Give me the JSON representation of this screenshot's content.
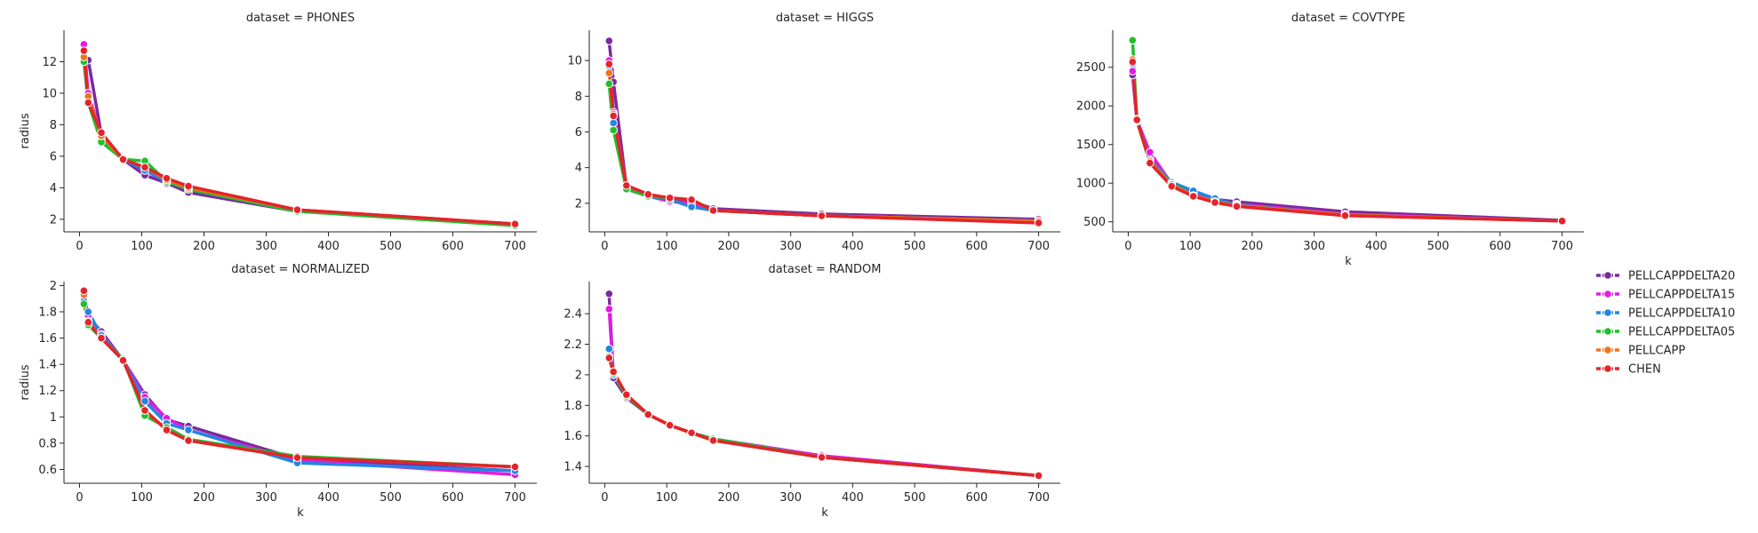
{
  "legend": {
    "placement": "right",
    "entries": [
      {
        "name": "PELLCAPPDELTA20",
        "color": "#7b2a9e"
      },
      {
        "name": "PELLCAPPDELTA15",
        "color": "#e21be2"
      },
      {
        "name": "PELLCAPPDELTA10",
        "color": "#2185e4"
      },
      {
        "name": "PELLCAPPDELTA05",
        "color": "#1fbf2c"
      },
      {
        "name": "PELLCAPP",
        "color": "#f07318"
      },
      {
        "name": "CHEN",
        "color": "#e3242b"
      }
    ]
  },
  "chart_data": [
    {
      "type": "line",
      "title": "dataset = PHONES",
      "xlabel": "",
      "ylabel": "radius",
      "xlim": [
        -25,
        735
      ],
      "ylim": [
        1.2,
        14.0
      ],
      "xticks": [
        0,
        100,
        200,
        300,
        400,
        500,
        600,
        700
      ],
      "yticks": [
        2,
        4,
        6,
        8,
        10,
        12
      ],
      "x": [
        7,
        14,
        35,
        70,
        105,
        140,
        175,
        350,
        700
      ],
      "series": [
        {
          "name": "PELLCAPPDELTA20",
          "values": [
            12.0,
            12.1,
            7.4,
            5.8,
            4.8,
            4.3,
            3.7,
            2.5,
            1.7
          ]
        },
        {
          "name": "PELLCAPPDELTA15",
          "values": [
            13.1,
            10.0,
            7.3,
            5.8,
            5.2,
            4.5,
            3.9,
            2.6,
            1.7
          ]
        },
        {
          "name": "PELLCAPPDELTA10",
          "values": [
            12.4,
            9.6,
            7.1,
            5.8,
            5.1,
            4.4,
            3.9,
            2.5,
            1.7
          ]
        },
        {
          "name": "PELLCAPPDELTA05",
          "values": [
            12.0,
            9.4,
            6.9,
            5.8,
            5.7,
            4.4,
            3.9,
            2.5,
            1.6
          ]
        },
        {
          "name": "PELLCAPP",
          "values": [
            12.3,
            9.8,
            7.3,
            5.8,
            5.3,
            4.5,
            4.0,
            2.6,
            1.7
          ]
        },
        {
          "name": "CHEN",
          "values": [
            12.7,
            9.4,
            7.5,
            5.8,
            5.3,
            4.6,
            4.1,
            2.6,
            1.7
          ]
        }
      ]
    },
    {
      "type": "line",
      "title": "dataset = HIGGS",
      "xlabel": "",
      "ylabel": "",
      "xlim": [
        -25,
        735
      ],
      "ylim": [
        0.4,
        11.7
      ],
      "xticks": [
        0,
        100,
        200,
        300,
        400,
        500,
        600,
        700
      ],
      "yticks": [
        2,
        4,
        6,
        8,
        10
      ],
      "x": [
        7,
        14,
        35,
        70,
        105,
        140,
        175,
        350,
        700
      ],
      "series": [
        {
          "name": "PELLCAPPDELTA20",
          "values": [
            11.1,
            8.8,
            2.9,
            2.4,
            2.3,
            2.1,
            1.7,
            1.4,
            1.1
          ]
        },
        {
          "name": "PELLCAPPDELTA15",
          "values": [
            10.0,
            7.1,
            2.8,
            2.4,
            2.1,
            2.0,
            1.6,
            1.3,
            1.0
          ]
        },
        {
          "name": "PELLCAPPDELTA10",
          "values": [
            9.7,
            6.5,
            2.9,
            2.4,
            2.2,
            1.8,
            1.6,
            1.3,
            1.0
          ]
        },
        {
          "name": "PELLCAPPDELTA05",
          "values": [
            8.7,
            6.1,
            2.8,
            2.4,
            2.3,
            2.2,
            1.6,
            1.3,
            1.0
          ]
        },
        {
          "name": "PELLCAPP",
          "values": [
            9.3,
            7.0,
            3.0,
            2.5,
            2.3,
            2.2,
            1.6,
            1.3,
            1.0
          ]
        },
        {
          "name": "CHEN",
          "values": [
            9.8,
            6.9,
            3.0,
            2.5,
            2.3,
            2.2,
            1.6,
            1.3,
            0.9
          ]
        }
      ]
    },
    {
      "type": "line",
      "title": "dataset = COVTYPE",
      "xlabel": "k",
      "ylabel": "",
      "xlim": [
        -25,
        735
      ],
      "ylim": [
        370,
        2980
      ],
      "xticks": [
        0,
        100,
        200,
        300,
        400,
        500,
        600,
        700
      ],
      "yticks": [
        500,
        1000,
        1500,
        2000,
        2500
      ],
      "x": [
        7,
        14,
        35,
        70,
        105,
        140,
        175,
        350,
        700
      ],
      "series": [
        {
          "name": "PELLCAPPDELTA20",
          "values": [
            2400,
            1800,
            1350,
            1000,
            870,
            790,
            760,
            630,
            520
          ]
        },
        {
          "name": "PELLCAPPDELTA15",
          "values": [
            2450,
            1820,
            1400,
            990,
            880,
            780,
            730,
            600,
            510
          ]
        },
        {
          "name": "PELLCAPPDELTA10",
          "values": [
            2550,
            1830,
            1300,
            1010,
            900,
            800,
            720,
            590,
            510
          ]
        },
        {
          "name": "PELLCAPPDELTA05",
          "values": [
            2850,
            1800,
            1280,
            990,
            840,
            760,
            710,
            590,
            510
          ]
        },
        {
          "name": "PELLCAPP",
          "values": [
            2600,
            1810,
            1280,
            980,
            840,
            760,
            710,
            590,
            510
          ]
        },
        {
          "name": "CHEN",
          "values": [
            2570,
            1820,
            1260,
            960,
            830,
            750,
            700,
            580,
            510
          ]
        }
      ]
    },
    {
      "type": "line",
      "title": "dataset = NORMALIZED",
      "xlabel": "k",
      "ylabel": "radius",
      "xlim": [
        -25,
        735
      ],
      "ylim": [
        0.495,
        2.03
      ],
      "xticks": [
        0,
        100,
        200,
        300,
        400,
        500,
        600,
        700
      ],
      "yticks": [
        0.6,
        0.8,
        1.0,
        1.2,
        1.4,
        1.6,
        1.8,
        2.0
      ],
      "x": [
        7,
        14,
        35,
        70,
        105,
        140,
        175,
        350,
        700
      ],
      "series": [
        {
          "name": "PELLCAPPDELTA20",
          "values": [
            1.95,
            1.76,
            1.65,
            1.43,
            1.17,
            0.98,
            0.93,
            0.68,
            0.59
          ]
        },
        {
          "name": "PELLCAPPDELTA15",
          "values": [
            1.9,
            1.77,
            1.63,
            1.43,
            1.15,
            0.99,
            0.9,
            0.67,
            0.56
          ]
        },
        {
          "name": "PELLCAPPDELTA10",
          "values": [
            1.88,
            1.8,
            1.62,
            1.43,
            1.12,
            0.95,
            0.9,
            0.65,
            0.59
          ]
        },
        {
          "name": "PELLCAPPDELTA05",
          "values": [
            1.86,
            1.7,
            1.6,
            1.44,
            1.01,
            0.92,
            0.83,
            0.7,
            0.62
          ]
        },
        {
          "name": "PELLCAPP",
          "values": [
            1.93,
            1.73,
            1.6,
            1.43,
            1.05,
            0.9,
            0.82,
            0.69,
            0.62
          ]
        },
        {
          "name": "CHEN",
          "values": [
            1.96,
            1.72,
            1.6,
            1.43,
            1.05,
            0.9,
            0.82,
            0.69,
            0.62
          ]
        }
      ]
    },
    {
      "type": "line",
      "title": "dataset = RANDOM",
      "xlabel": "k",
      "ylabel": "",
      "xlim": [
        -25,
        735
      ],
      "ylim": [
        1.29,
        2.61
      ],
      "xticks": [
        0,
        100,
        200,
        300,
        400,
        500,
        600,
        700
      ],
      "yticks": [
        1.4,
        1.6,
        1.8,
        2.0,
        2.2,
        2.4
      ],
      "x": [
        7,
        14,
        35,
        70,
        105,
        140,
        175,
        350,
        700
      ],
      "series": [
        {
          "name": "PELLCAPPDELTA20",
          "values": [
            2.53,
            1.98,
            1.85,
            1.74,
            1.67,
            1.62,
            1.58,
            1.46,
            1.34
          ]
        },
        {
          "name": "PELLCAPPDELTA15",
          "values": [
            2.43,
            2.0,
            1.86,
            1.74,
            1.67,
            1.62,
            1.58,
            1.47,
            1.34
          ]
        },
        {
          "name": "PELLCAPPDELTA10",
          "values": [
            2.17,
            2.0,
            1.86,
            1.74,
            1.67,
            1.62,
            1.58,
            1.46,
            1.34
          ]
        },
        {
          "name": "PELLCAPPDELTA05",
          "values": [
            2.12,
            2.01,
            1.86,
            1.74,
            1.67,
            1.62,
            1.58,
            1.46,
            1.34
          ]
        },
        {
          "name": "PELLCAPP",
          "values": [
            2.11,
            2.02,
            1.87,
            1.74,
            1.67,
            1.62,
            1.57,
            1.46,
            1.34
          ]
        },
        {
          "name": "CHEN",
          "values": [
            2.11,
            2.02,
            1.87,
            1.74,
            1.67,
            1.62,
            1.57,
            1.46,
            1.34
          ]
        }
      ]
    }
  ]
}
